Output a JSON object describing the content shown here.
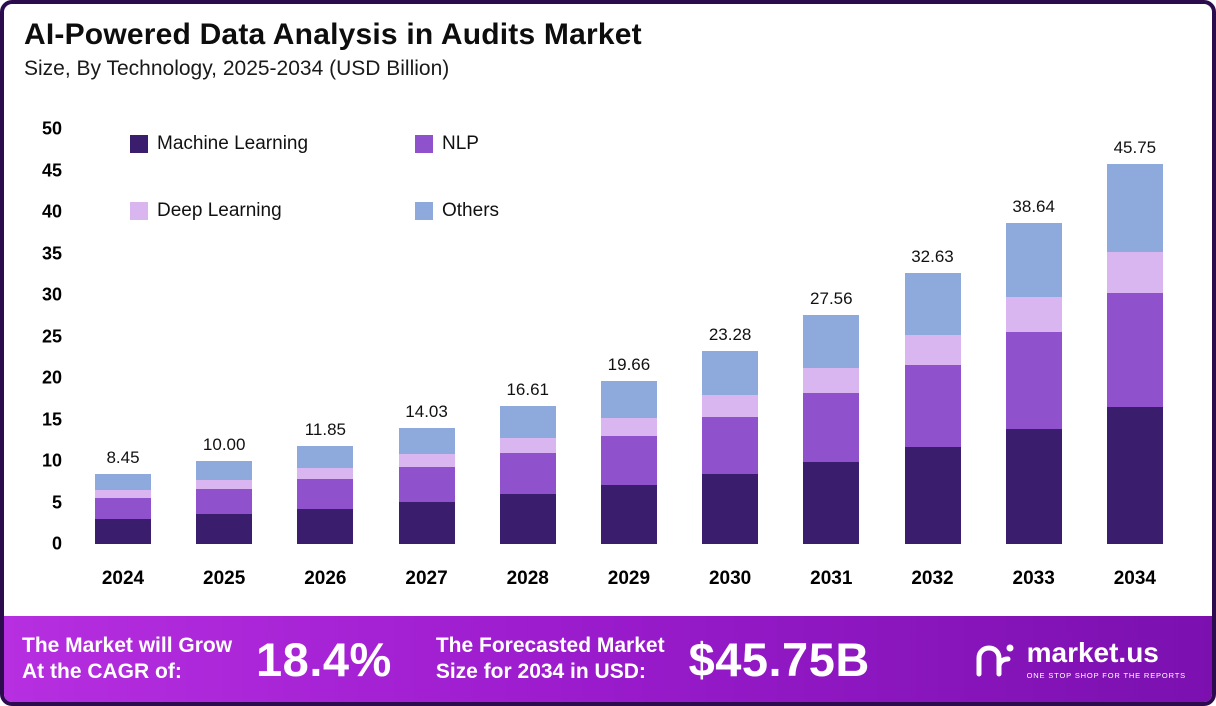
{
  "title": "AI-Powered Data Analysis in Audits Market",
  "subtitle": "Size, By Technology, 2025-2034 (USD Billion)",
  "colors": {
    "frame": "#2c0c4d",
    "machine_learning": "#3b1d6e",
    "nlp": "#8f52cc",
    "deep_learning": "#d9b6f0",
    "others": "#8ea9dc",
    "banner_gradient_start": "#b62fe0",
    "banner_gradient_end": "#7b10af"
  },
  "chart_data": {
    "type": "bar",
    "stacked": true,
    "title": "AI-Powered Data Analysis in Audits Market",
    "subtitle": "Size, By Technology, 2025-2034 (USD Billion)",
    "ylabel": "USD Billion",
    "xlabel": "",
    "grid": false,
    "legend_position": "top-left-inside",
    "ylim": [
      0,
      50
    ],
    "yticks": [
      0,
      5,
      10,
      15,
      20,
      25,
      30,
      35,
      40,
      45,
      50
    ],
    "categories": [
      "2024",
      "2025",
      "2026",
      "2027",
      "2028",
      "2029",
      "2030",
      "2031",
      "2032",
      "2033",
      "2034"
    ],
    "totals": [
      8.45,
      10.0,
      11.85,
      14.03,
      16.61,
      19.66,
      23.28,
      27.56,
      32.63,
      38.64,
      45.75
    ],
    "total_labels": [
      "8.45",
      "10.00",
      "11.85",
      "14.03",
      "16.61",
      "19.66",
      "23.28",
      "27.56",
      "32.63",
      "38.64",
      "45.75"
    ],
    "series": [
      {
        "name": "Machine Learning",
        "key": "machine_learning",
        "values": [
          3.04,
          3.6,
          4.27,
          5.05,
          5.98,
          7.08,
          8.38,
          9.92,
          11.75,
          13.91,
          16.47
        ]
      },
      {
        "name": "NLP",
        "key": "nlp",
        "values": [
          2.54,
          3.0,
          3.56,
          4.21,
          4.98,
          5.9,
          6.98,
          8.27,
          9.79,
          11.59,
          13.73
        ]
      },
      {
        "name": "Deep Learning",
        "key": "deep_learning",
        "values": [
          0.93,
          1.1,
          1.3,
          1.54,
          1.83,
          2.16,
          2.56,
          3.03,
          3.59,
          4.25,
          5.03
        ]
      },
      {
        "name": "Others",
        "key": "others",
        "values": [
          1.94,
          2.3,
          2.72,
          3.23,
          3.82,
          4.52,
          5.36,
          6.34,
          7.5,
          8.89,
          10.52
        ]
      }
    ]
  },
  "banner": {
    "cagr_label_line1": "The Market will Grow",
    "cagr_label_line2": "At the CAGR of:",
    "cagr_value": "18.4%",
    "forecast_label_line1": "The Forecasted Market",
    "forecast_label_line2": "Size for 2034 in USD:",
    "forecast_value": "$45.75B",
    "logo_text": "market.us",
    "logo_tagline": "ONE STOP SHOP FOR THE REPORTS"
  }
}
